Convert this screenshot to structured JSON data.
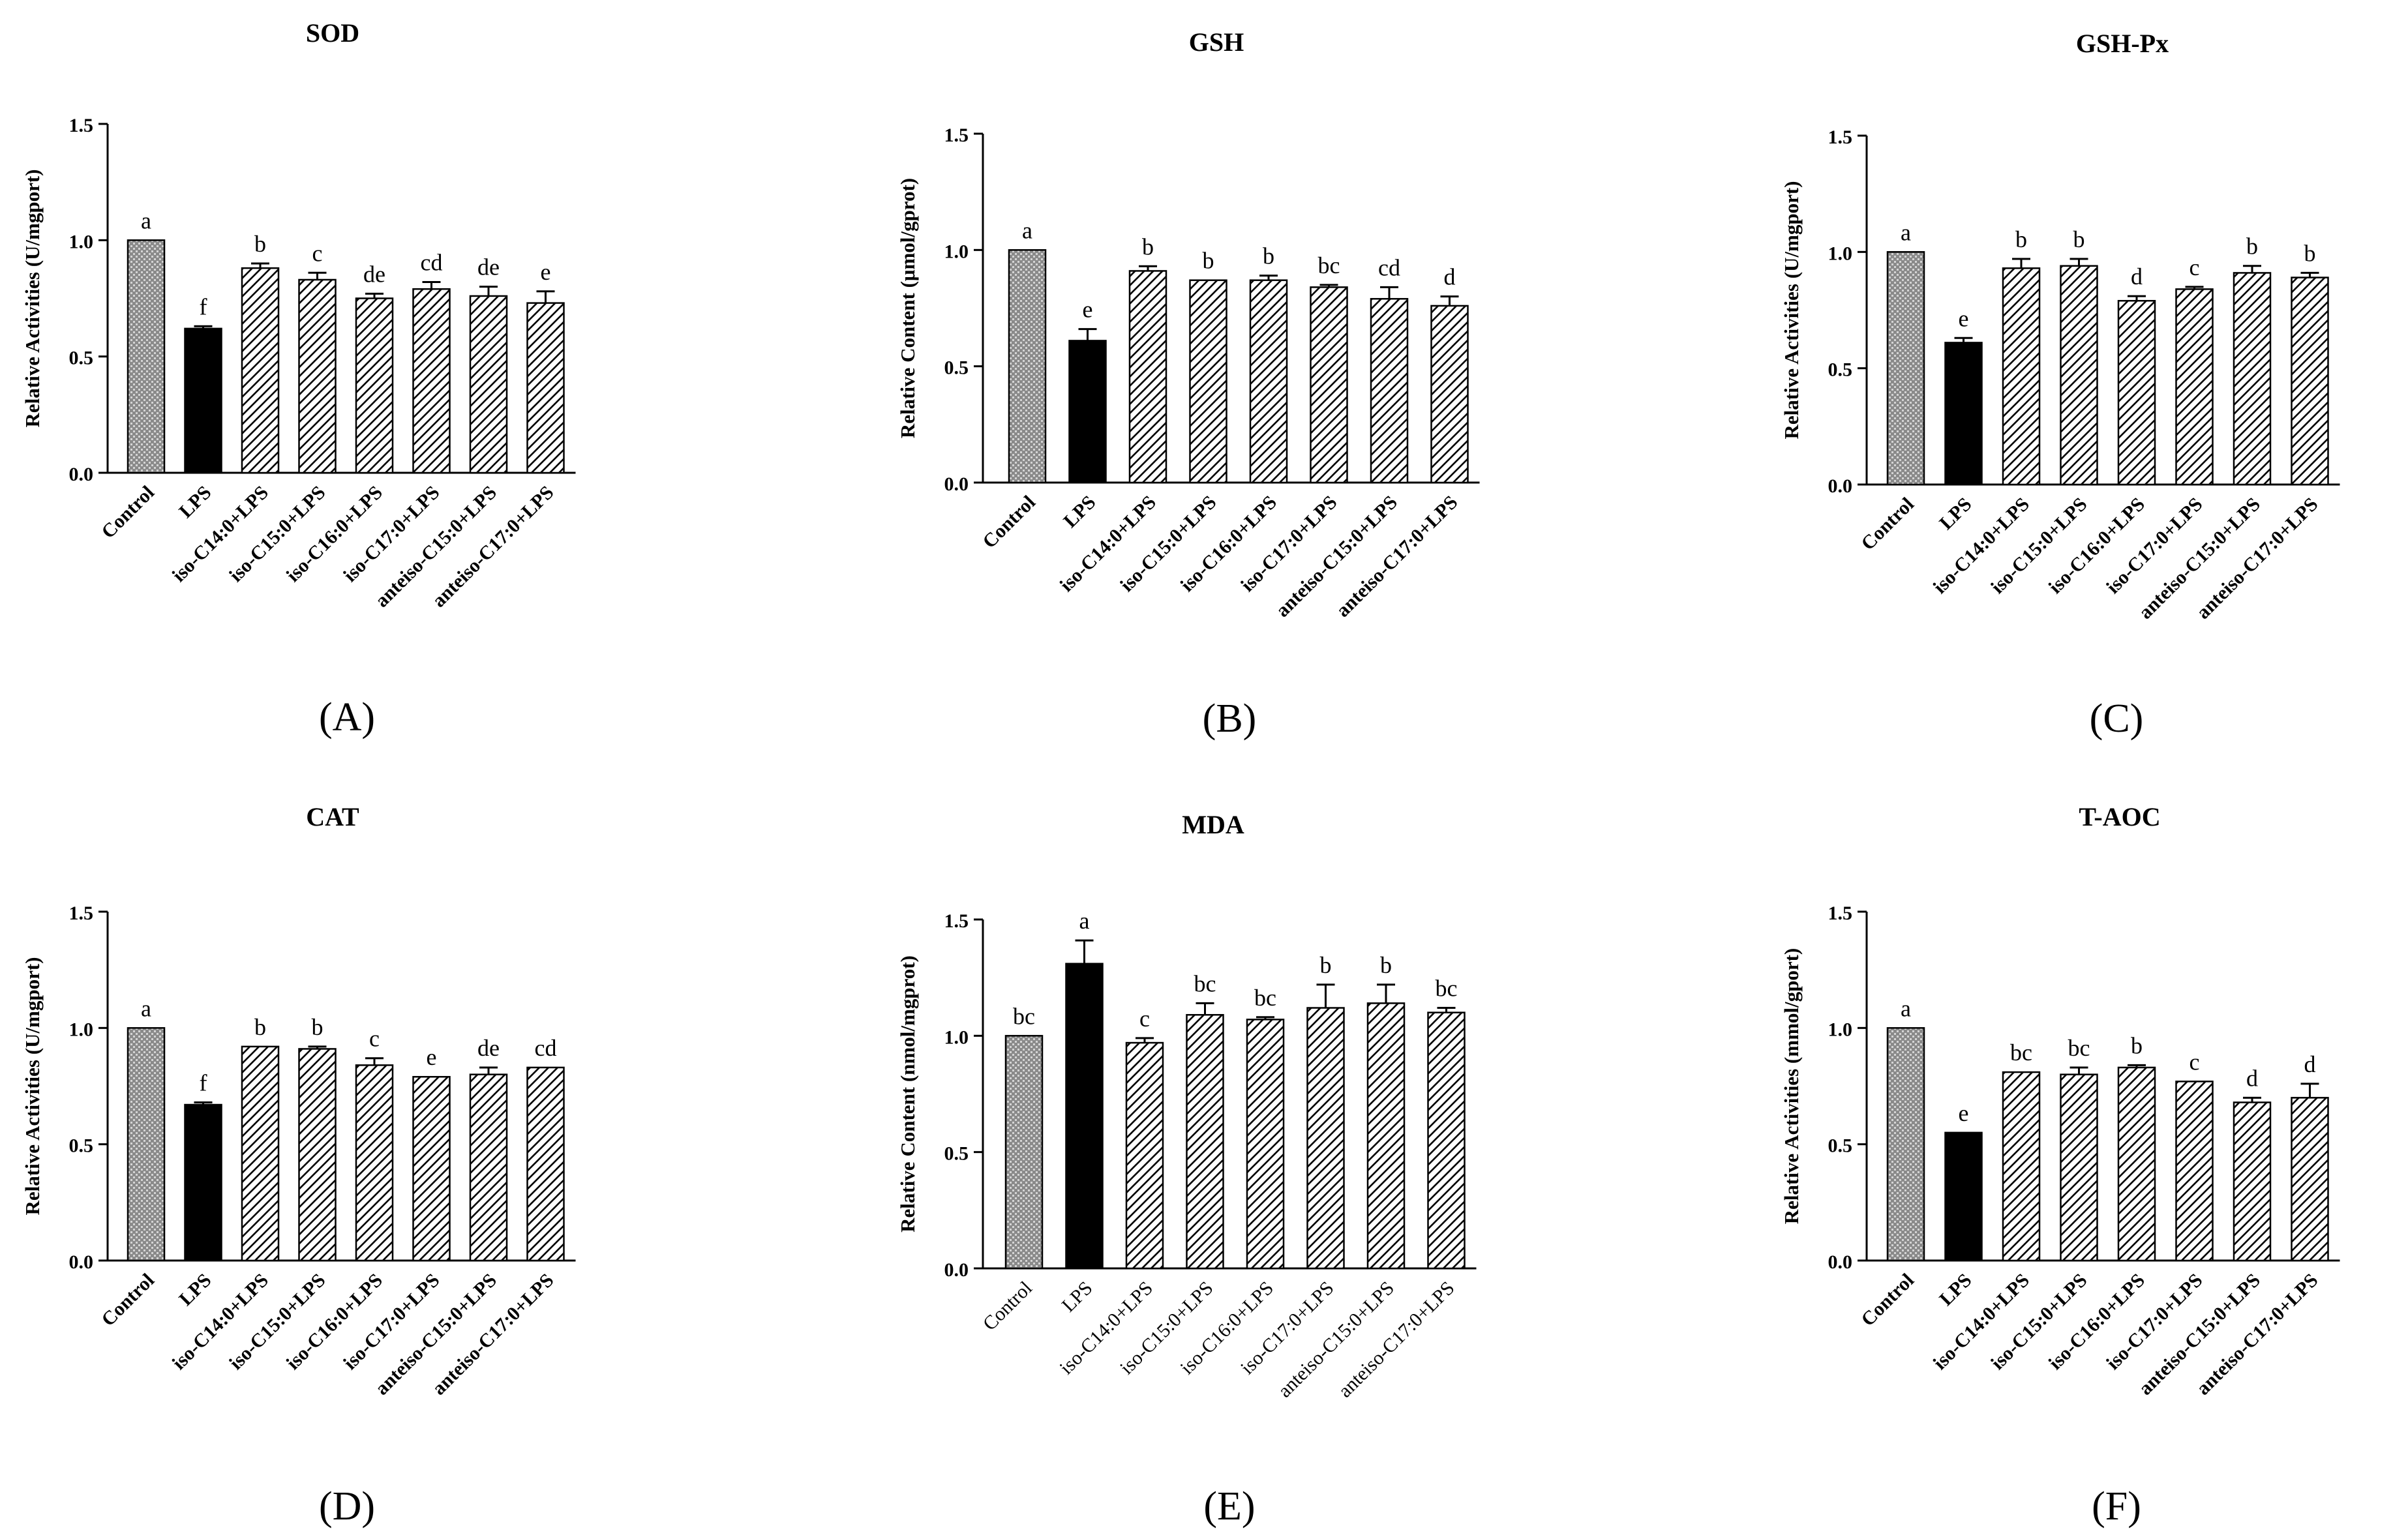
{
  "figure": {
    "colors": {
      "ink": "#000000",
      "background": "#ffffff",
      "control_fill": "#8a8a8a",
      "lps_fill": "#000000"
    },
    "fill_styles": [
      "crosshatch",
      "solid",
      "diagonal",
      "diagonal",
      "diagonal",
      "diagonal",
      "diagonal",
      "diagonal"
    ]
  },
  "chart_data": [
    {
      "type": "bar",
      "panel_label": "(A)",
      "title": "SOD",
      "ylabel": "Relative Activities (U/mgport)",
      "categories": [
        "Control",
        "LPS",
        "iso-C14:0+LPS",
        "iso-C15:0+LPS",
        "iso-C16:0+LPS",
        "iso-C17:0+LPS",
        "anteiso-C15:0+LPS",
        "anteiso-C17:0+LPS"
      ],
      "values": [
        1.0,
        0.62,
        0.88,
        0.83,
        0.75,
        0.79,
        0.76,
        0.73
      ],
      "errors": [
        0.0,
        0.01,
        0.02,
        0.03,
        0.02,
        0.03,
        0.04,
        0.05
      ],
      "letters": [
        "a",
        "f",
        "b",
        "c",
        "de",
        "cd",
        "de",
        "e"
      ],
      "ylim": [
        0,
        1.5
      ],
      "yticks": [
        "0.0",
        "0.5",
        "1.0",
        "1.5"
      ],
      "bold_tick_labels": true
    },
    {
      "type": "bar",
      "panel_label": "(B)",
      "title": "GSH",
      "ylabel": "Relative Content (μmol/gprot)",
      "categories": [
        "Control",
        "LPS",
        "iso-C14:0+LPS",
        "iso-C15:0+LPS",
        "iso-C16:0+LPS",
        "iso-C17:0+LPS",
        "anteiso-C15:0+LPS",
        "anteiso-C17:0+LPS"
      ],
      "values": [
        1.0,
        0.61,
        0.91,
        0.87,
        0.87,
        0.84,
        0.79,
        0.76
      ],
      "errors": [
        0.0,
        0.05,
        0.02,
        0.0,
        0.02,
        0.01,
        0.05,
        0.04
      ],
      "letters": [
        "a",
        "e",
        "b",
        "b",
        "b",
        "bc",
        "cd",
        "d"
      ],
      "ylim": [
        0,
        1.5
      ],
      "yticks": [
        "0.0",
        "0.5",
        "1.0",
        "1.5"
      ],
      "bold_tick_labels": true
    },
    {
      "type": "bar",
      "panel_label": "(C)",
      "title": "GSH-Px",
      "ylabel": "Relative Activities (U/mgport)",
      "categories": [
        "Control",
        "LPS",
        "iso-C14:0+LPS",
        "iso-C15:0+LPS",
        "iso-C16:0+LPS",
        "iso-C17:0+LPS",
        "anteiso-C15:0+LPS",
        "anteiso-C17:0+LPS"
      ],
      "values": [
        1.0,
        0.61,
        0.93,
        0.94,
        0.79,
        0.84,
        0.91,
        0.89
      ],
      "errors": [
        0.0,
        0.02,
        0.04,
        0.03,
        0.02,
        0.01,
        0.03,
        0.02
      ],
      "letters": [
        "a",
        "e",
        "b",
        "b",
        "d",
        "c",
        "b",
        "b"
      ],
      "ylim": [
        0,
        1.5
      ],
      "yticks": [
        "0.0",
        "0.5",
        "1.0",
        "1.5"
      ],
      "bold_tick_labels": true
    },
    {
      "type": "bar",
      "panel_label": "(D)",
      "title": "CAT",
      "ylabel": "Relative Activities (U/mgport)",
      "categories": [
        "Control",
        "LPS",
        "iso-C14:0+LPS",
        "iso-C15:0+LPS",
        "iso-C16:0+LPS",
        "iso-C17:0+LPS",
        "anteiso-C15:0+LPS",
        "anteiso-C17:0+LPS"
      ],
      "values": [
        1.0,
        0.67,
        0.92,
        0.91,
        0.84,
        0.79,
        0.8,
        0.83
      ],
      "errors": [
        0.0,
        0.01,
        0.0,
        0.01,
        0.03,
        0.0,
        0.03,
        0.0
      ],
      "letters": [
        "a",
        "f",
        "b",
        "b",
        "c",
        "e",
        "de",
        "cd"
      ],
      "ylim": [
        0,
        1.5
      ],
      "yticks": [
        "0.0",
        "0.5",
        "1.0",
        "1.5"
      ],
      "bold_tick_labels": true
    },
    {
      "type": "bar",
      "panel_label": "(E)",
      "title": "MDA",
      "ylabel": "Relative Content (nmol/mgprot)",
      "categories": [
        "Control",
        "LPS",
        "iso-C14:0+LPS",
        "iso-C15:0+LPS",
        "iso-C16:0+LPS",
        "iso-C17:0+LPS",
        "anteiso-C15:0+LPS",
        "anteiso-C17:0+LPS"
      ],
      "values": [
        1.0,
        1.31,
        0.97,
        1.09,
        1.07,
        1.12,
        1.14,
        1.1
      ],
      "errors": [
        0.0,
        0.1,
        0.02,
        0.05,
        0.01,
        0.1,
        0.08,
        0.02
      ],
      "letters": [
        "bc",
        "a",
        "c",
        "bc",
        "bc",
        "b",
        "b",
        "bc"
      ],
      "ylim": [
        0,
        1.5
      ],
      "yticks": [
        "0.0",
        "0.5",
        "1.0",
        "1.5"
      ],
      "bold_tick_labels": false
    },
    {
      "type": "bar",
      "panel_label": "(F)",
      "title": "T-AOC",
      "ylabel": "Relative Activities (mmol/gport)",
      "categories": [
        "Control",
        "LPS",
        "iso-C14:0+LPS",
        "iso-C15:0+LPS",
        "iso-C16:0+LPS",
        "iso-C17:0+LPS",
        "anteiso-C15:0+LPS",
        "anteiso-C17:0+LPS"
      ],
      "values": [
        1.0,
        0.55,
        0.81,
        0.8,
        0.83,
        0.77,
        0.68,
        0.7
      ],
      "errors": [
        0.0,
        0.0,
        0.0,
        0.03,
        0.01,
        0.0,
        0.02,
        0.06
      ],
      "letters": [
        "a",
        "e",
        "bc",
        "bc",
        "b",
        "c",
        "d",
        "d"
      ],
      "ylim": [
        0,
        1.5
      ],
      "yticks": [
        "0.0",
        "0.5",
        "1.0",
        "1.5"
      ],
      "bold_tick_labels": true
    }
  ]
}
